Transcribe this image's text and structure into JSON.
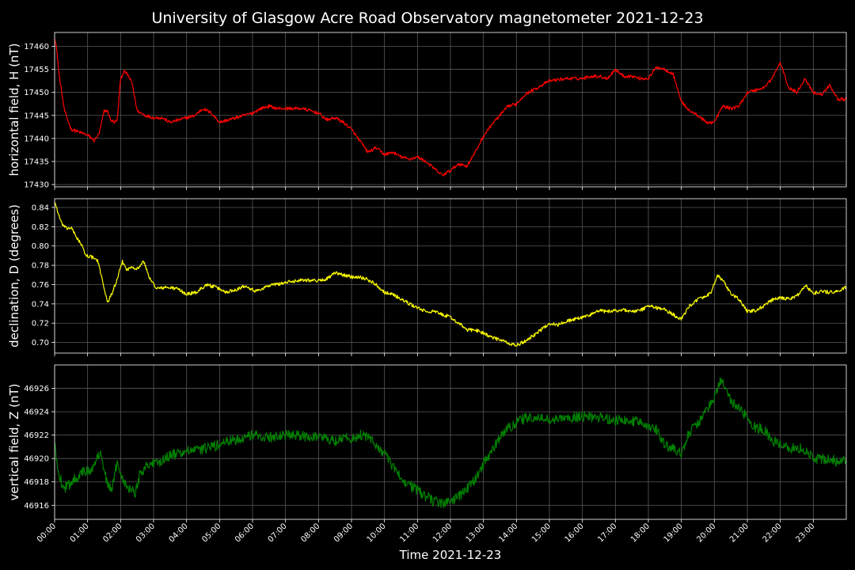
{
  "chart_data": {
    "type": "line",
    "title": "University of Glasgow Acre Road Observatory magnetometer 2021-12-23",
    "xlabel": "Time 2021-12-23",
    "x_ticks": [
      "00:00",
      "01:00",
      "02:00",
      "03:00",
      "04:00",
      "05:00",
      "06:00",
      "07:00",
      "08:00",
      "09:00",
      "10:00",
      "11:00",
      "12:00",
      "13:00",
      "14:00",
      "15:00",
      "16:00",
      "17:00",
      "18:00",
      "19:00",
      "20:00",
      "21:00",
      "22:00",
      "23:00"
    ],
    "xlim": [
      0,
      24
    ],
    "grid": true,
    "colors": {
      "background": "#000000",
      "grid": "#5a5a5a",
      "axis": "#ffffff"
    },
    "panels": [
      {
        "ylabel": "horizontal field, H (nT)",
        "color": "#ff0000",
        "ylim": [
          17429.5,
          17463
        ],
        "yticks": [
          17430,
          17435,
          17440,
          17445,
          17450,
          17455,
          17460
        ],
        "ytick_labels": [
          "17430",
          "17435",
          "17440",
          "17445",
          "17450",
          "17455",
          "17460"
        ],
        "noise": 0.35,
        "x": [
          0,
          0.05,
          0.15,
          0.3,
          0.5,
          0.7,
          0.9,
          1.05,
          1.2,
          1.35,
          1.5,
          1.6,
          1.7,
          1.8,
          1.9,
          2.0,
          2.1,
          2.2,
          2.35,
          2.5,
          2.75,
          3.0,
          3.25,
          3.5,
          3.75,
          4.0,
          4.25,
          4.5,
          4.75,
          5.0,
          5.25,
          5.5,
          5.75,
          6.0,
          6.25,
          6.5,
          6.75,
          7.0,
          7.5,
          8.0,
          8.25,
          8.5,
          8.75,
          9.0,
          9.25,
          9.5,
          9.75,
          10.0,
          10.25,
          10.5,
          10.75,
          11.0,
          11.25,
          11.5,
          11.75,
          12.0,
          12.25,
          12.5,
          12.75,
          13.0,
          13.25,
          13.5,
          13.75,
          14.0,
          14.25,
          14.5,
          14.75,
          15.0,
          15.5,
          16.0,
          16.25,
          16.5,
          16.75,
          17.0,
          17.25,
          17.5,
          17.75,
          18.0,
          18.25,
          18.5,
          18.75,
          19.0,
          19.25,
          19.5,
          19.75,
          20.0,
          20.25,
          20.5,
          20.75,
          21.0,
          21.25,
          21.5,
          21.75,
          22.0,
          22.25,
          22.5,
          22.75,
          23.0,
          23.25,
          23.5,
          23.75,
          24.0
        ],
        "y": [
          17462,
          17460,
          17453,
          17446,
          17442,
          17441.5,
          17441,
          17440.5,
          17439.5,
          17441,
          17446,
          17446,
          17444,
          17443.5,
          17444,
          17453,
          17454.5,
          17454,
          17452,
          17446,
          17445,
          17444.5,
          17444.5,
          17443.5,
          17444,
          17444.5,
          17445,
          17446.5,
          17445.5,
          17443.5,
          17444,
          17444.5,
          17445,
          17445.5,
          17446.5,
          17447,
          17446.5,
          17446.5,
          17446.5,
          17445.5,
          17444,
          17444.5,
          17443.5,
          17442,
          17439.5,
          17437,
          17438,
          17436.5,
          17437,
          17436,
          17435.5,
          17436,
          17435,
          17433.5,
          17432,
          17433,
          17434.5,
          17434,
          17437,
          17440.5,
          17443,
          17445,
          17447,
          17447.5,
          17449.5,
          17450.5,
          17451.5,
          17452.5,
          17453,
          17453,
          17453.5,
          17453.5,
          17453,
          17455,
          17453.5,
          17453.5,
          17453,
          17453,
          17455.5,
          17455,
          17454,
          17448,
          17446,
          17445,
          17443.5,
          17443.5,
          17447,
          17446.5,
          17447,
          17450,
          17450.5,
          17451,
          17453,
          17456.5,
          17451,
          17450,
          17453,
          17450,
          17449.5,
          17451.5,
          17448.5,
          17448.5
        ]
      },
      {
        "ylabel": "declination, D (degrees)",
        "color": "#ffff00",
        "ylim": [
          0.689,
          0.849
        ],
        "yticks": [
          0.7,
          0.72,
          0.74,
          0.76,
          0.78,
          0.8,
          0.82,
          0.84
        ],
        "ytick_labels": [
          "0.70",
          "0.72",
          "0.74",
          "0.76",
          "0.78",
          "0.80",
          "0.82",
          "0.84"
        ],
        "noise": 0.0018,
        "x": [
          0,
          0.1,
          0.2,
          0.35,
          0.5,
          0.65,
          0.8,
          0.95,
          1.1,
          1.3,
          1.45,
          1.6,
          1.75,
          1.9,
          2.05,
          2.2,
          2.35,
          2.5,
          2.7,
          2.9,
          3.1,
          3.4,
          3.7,
          4.0,
          4.3,
          4.6,
          4.9,
          5.2,
          5.5,
          5.8,
          6.1,
          6.5,
          7.0,
          7.5,
          8.0,
          8.25,
          8.5,
          9.0,
          9.25,
          9.5,
          9.75,
          10.0,
          10.25,
          10.5,
          10.75,
          11.0,
          11.25,
          11.5,
          11.75,
          12.0,
          12.25,
          12.5,
          12.75,
          13.0,
          13.25,
          13.5,
          13.75,
          14.0,
          14.25,
          14.5,
          14.75,
          15.0,
          15.25,
          15.5,
          15.75,
          16.0,
          16.25,
          16.5,
          16.75,
          17.0,
          17.25,
          17.5,
          17.75,
          18.0,
          18.25,
          18.5,
          18.75,
          19.0,
          19.25,
          19.5,
          19.75,
          19.9,
          20.1,
          20.25,
          20.5,
          20.75,
          21.0,
          21.25,
          21.5,
          21.75,
          22.0,
          22.25,
          22.5,
          22.75,
          23.0,
          23.25,
          23.5,
          23.75,
          24.0
        ],
        "y": [
          0.846,
          0.835,
          0.824,
          0.818,
          0.819,
          0.81,
          0.802,
          0.79,
          0.789,
          0.785,
          0.765,
          0.741,
          0.752,
          0.765,
          0.784,
          0.775,
          0.779,
          0.776,
          0.784,
          0.765,
          0.756,
          0.757,
          0.756,
          0.75,
          0.752,
          0.76,
          0.757,
          0.752,
          0.755,
          0.759,
          0.753,
          0.759,
          0.762,
          0.765,
          0.764,
          0.766,
          0.772,
          0.768,
          0.768,
          0.765,
          0.76,
          0.752,
          0.75,
          0.745,
          0.74,
          0.736,
          0.732,
          0.732,
          0.729,
          0.726,
          0.72,
          0.713,
          0.713,
          0.71,
          0.705,
          0.703,
          0.699,
          0.697,
          0.701,
          0.707,
          0.713,
          0.72,
          0.718,
          0.722,
          0.724,
          0.726,
          0.729,
          0.733,
          0.732,
          0.733,
          0.734,
          0.732,
          0.733,
          0.738,
          0.736,
          0.734,
          0.729,
          0.724,
          0.738,
          0.745,
          0.747,
          0.752,
          0.769,
          0.765,
          0.75,
          0.745,
          0.732,
          0.733,
          0.738,
          0.744,
          0.746,
          0.745,
          0.748,
          0.759,
          0.751,
          0.753,
          0.752,
          0.753,
          0.757
        ]
      },
      {
        "ylabel": "vertical field, Z (nT)",
        "color": "#008000",
        "ylim": [
          46914.8,
          46928
        ],
        "yticks": [
          46916,
          46918,
          46920,
          46922,
          46924,
          46926
        ],
        "ytick_labels": [
          "46916",
          "46918",
          "46920",
          "46922",
          "46924",
          "46926"
        ],
        "noise": 0.45,
        "x": [
          0,
          0.1,
          0.25,
          0.4,
          0.55,
          0.7,
          0.85,
          1.0,
          1.2,
          1.4,
          1.5,
          1.65,
          1.75,
          1.9,
          2.1,
          2.25,
          2.45,
          2.6,
          2.75,
          2.9,
          3.1,
          3.4,
          3.7,
          4.0,
          4.3,
          4.6,
          4.9,
          5.2,
          5.5,
          5.8,
          6.1,
          6.5,
          7.0,
          7.5,
          8.0,
          8.25,
          8.5,
          8.75,
          9.0,
          9.3,
          9.6,
          10.0,
          10.25,
          10.5,
          10.75,
          11.0,
          11.25,
          11.5,
          11.75,
          12.0,
          12.25,
          12.5,
          12.75,
          13.0,
          13.25,
          13.5,
          13.75,
          14.0,
          14.25,
          14.5,
          14.75,
          15.0,
          15.5,
          16.0,
          16.5,
          17.0,
          17.5,
          18.0,
          18.25,
          18.5,
          18.75,
          19.0,
          19.25,
          19.5,
          19.75,
          20.0,
          20.15,
          20.25,
          20.5,
          20.75,
          21.0,
          21.25,
          21.5,
          21.75,
          22.0,
          22.25,
          22.5,
          22.75,
          23.0,
          23.25,
          23.5,
          23.75,
          24.0
        ],
        "y": [
          46921.2,
          46919.2,
          46917.5,
          46917.6,
          46918.2,
          46918.5,
          46918.8,
          46918.9,
          46919.3,
          46920.8,
          46918.9,
          46917.4,
          46917.6,
          46919.7,
          46918.1,
          46917.5,
          46917.1,
          46918.8,
          46919.3,
          46919.6,
          46919.5,
          46920.2,
          46920.4,
          46920.6,
          46920.7,
          46920.9,
          46921.1,
          46921.4,
          46921.6,
          46921.9,
          46922,
          46921.8,
          46922,
          46921.9,
          46921.9,
          46921.7,
          46921.5,
          46921.8,
          46921.7,
          46922,
          46921.6,
          46920.4,
          46919.3,
          46918.4,
          46917.7,
          46917.3,
          46916.8,
          46916.3,
          46916.2,
          46916.3,
          46916.8,
          46917.4,
          46918.2,
          46919.5,
          46920.6,
          46921.8,
          46922.6,
          46923.1,
          46923.4,
          46923.5,
          46923.4,
          46923.3,
          46923.4,
          46923.6,
          46923.5,
          46923.3,
          46923.2,
          46922.9,
          46922.5,
          46921.2,
          46920.8,
          46920.5,
          46922.3,
          46923,
          46924,
          46925.2,
          46926.5,
          46926.4,
          46925,
          46924.3,
          46923.5,
          46922.6,
          46922.5,
          46921.5,
          46921.3,
          46920.8,
          46921,
          46920.7,
          46920,
          46919.9,
          46920,
          46919.7,
          46919.8
        ]
      }
    ]
  }
}
